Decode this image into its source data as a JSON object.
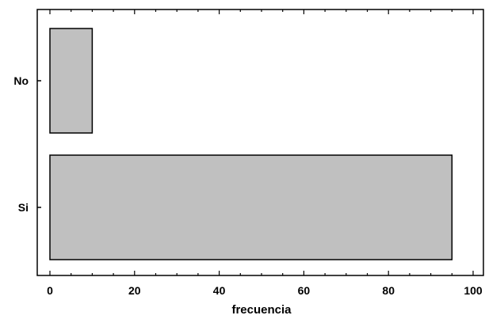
{
  "chart_data": {
    "type": "bar",
    "orientation": "horizontal",
    "categories": [
      "No",
      "Si"
    ],
    "values": [
      10,
      95
    ],
    "xlabel": "frecuencia",
    "ylabel": "",
    "xlim": [
      0,
      100
    ],
    "xticks": [
      0,
      20,
      40,
      60,
      80,
      100
    ],
    "tick_labels": [
      "0",
      "20",
      "40",
      "60",
      "80",
      "100"
    ],
    "grid": false,
    "legend": "none"
  },
  "colors": {
    "bar_fill": "#c0c0c0",
    "bar_stroke": "#000000",
    "axis": "#000000",
    "background": "#ffffff"
  }
}
